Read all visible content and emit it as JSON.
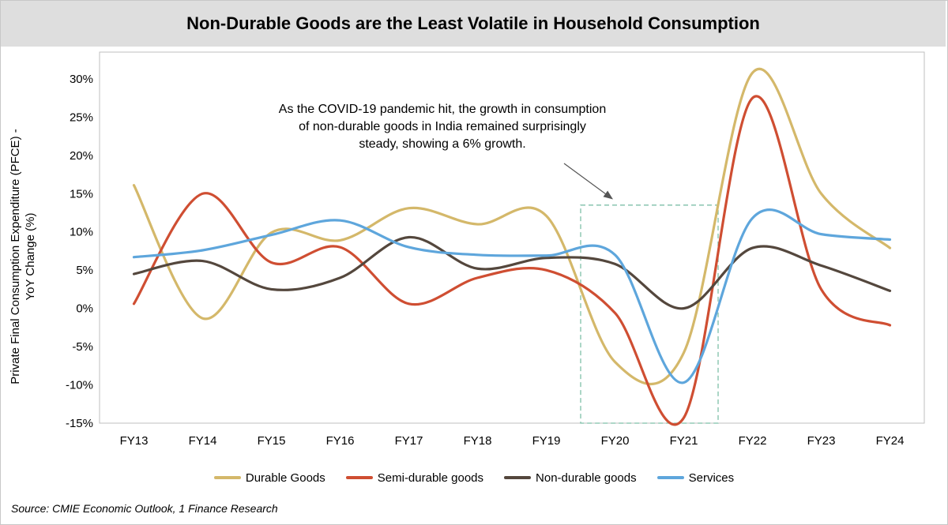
{
  "title": "Non-Durable Goods are the Least Volatile in Household Consumption",
  "ylabel_lines": [
    "Private Final Consumption Expenditure (PFCE) -",
    "YoY Change (%)"
  ],
  "annotation_lines": [
    "As the COVID-19 pandemic hit, the growth in consumption",
    "of non-durable goods in India remained surprisingly",
    "steady, showing  a 6% growth."
  ],
  "source": "Source: CMIE Economic Outlook, 1 Finance Research",
  "colors": {
    "durable": "#d4b86a",
    "semi": "#cf4e32",
    "nondurable": "#54473d",
    "services": "#5ea6dc",
    "highlight_box": "#7ebfa8",
    "axis": "#bfbfbf",
    "title_band": "#dedede"
  },
  "chart_data": {
    "type": "line",
    "title": "Non-Durable Goods are the Least Volatile in Household Consumption",
    "xlabel": "",
    "ylabel": "Private Final Consumption Expenditure (PFCE) - YoY Change (%)",
    "categories": [
      "FY13",
      "FY14",
      "FY15",
      "FY16",
      "FY17",
      "FY18",
      "FY19",
      "FY20",
      "FY21",
      "FY22",
      "FY23",
      "FY24"
    ],
    "ylim": [
      -15,
      30
    ],
    "yticks": [
      -15,
      -10,
      -5,
      0,
      5,
      10,
      15,
      20,
      25,
      30
    ],
    "ytick_labels": [
      "-15%",
      "-10%",
      "-5%",
      "0%",
      "5%",
      "10%",
      "15%",
      "20%",
      "25%",
      "30%"
    ],
    "smooth": true,
    "grid": false,
    "legend_position": "bottom",
    "series": [
      {
        "name": "Durable Goods",
        "color_key": "durable",
        "values": [
          16.1,
          -1.3,
          9.9,
          8.9,
          13.1,
          11.0,
          12.1,
          -7.0,
          -5.8,
          30.8,
          15.0,
          7.9
        ]
      },
      {
        "name": "Semi-durable goods",
        "color_key": "semi",
        "values": [
          0.6,
          15.0,
          6.0,
          8.0,
          0.6,
          4.0,
          5.0,
          -0.6,
          -14.3,
          27.5,
          2.5,
          -2.2
        ]
      },
      {
        "name": "Non-durable goods",
        "color_key": "nondurable",
        "values": [
          4.5,
          6.2,
          2.5,
          4.0,
          9.3,
          5.2,
          6.6,
          5.8,
          0.0,
          7.9,
          5.6,
          2.3
        ]
      },
      {
        "name": "Services",
        "color_key": "services",
        "values": [
          6.7,
          7.6,
          9.6,
          11.5,
          8.0,
          7.0,
          6.9,
          7.0,
          -9.7,
          11.8,
          9.7,
          9.0
        ]
      }
    ],
    "annotations": [
      {
        "type": "dashed-box",
        "x_range": [
          "FY19",
          "FY22"
        ],
        "y_range": [
          -15,
          13.5
        ],
        "note": "COVID-19 period highlight"
      },
      {
        "type": "arrow",
        "text_ref": "annotation_lines"
      }
    ]
  }
}
